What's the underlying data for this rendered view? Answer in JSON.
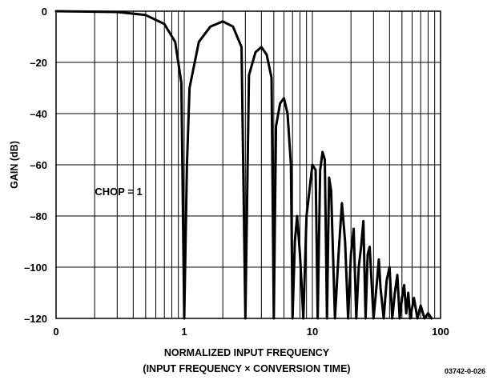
{
  "chart_data": {
    "type": "line",
    "xlabel_line1": "NORMALIZED INPUT FREQUENCY",
    "xlabel_line2": "(INPUT FREQUENCY × CONVERSION TIME)",
    "ylabel": "GAIN (dB)",
    "xscale": "log",
    "xlim": [
      0.1,
      100
    ],
    "ylim": [
      -120,
      0
    ],
    "grid": true,
    "x_ticks": [
      {
        "value": 0.1,
        "label": "0"
      },
      {
        "value": 1,
        "label": "1"
      },
      {
        "value": 10,
        "label": "10"
      },
      {
        "value": 100,
        "label": "100"
      }
    ],
    "y_ticks": [
      {
        "value": 0,
        "label": "0"
      },
      {
        "value": -20,
        "label": "–20"
      },
      {
        "value": -40,
        "label": "–40"
      },
      {
        "value": -60,
        "label": "–60"
      },
      {
        "value": -80,
        "label": "–80"
      },
      {
        "value": -100,
        "label": "–100"
      },
      {
        "value": -120,
        "label": "–120"
      }
    ],
    "annotation": "CHOP = 1",
    "figure_id": "03742-0-026",
    "series": [
      {
        "x": [
          0.1,
          0.3,
          0.5,
          0.7,
          0.85,
          0.95,
          1.0,
          1.05,
          1.1,
          1.3,
          1.6,
          2.0,
          2.4,
          2.8,
          3.0,
          3.2,
          3.6,
          4.0,
          4.4,
          4.8,
          5.0,
          5.2,
          5.6,
          6.0,
          6.4,
          6.8,
          7.0,
          7.3,
          7.6,
          8.0,
          8.5,
          9.0,
          10.0,
          10.6,
          11.0,
          11.5,
          12.0,
          12.5,
          13.0,
          13.5,
          14.0,
          15.0,
          16.0,
          17.0,
          18.0,
          19.0,
          20.0,
          21.0,
          22.0,
          23.0,
          24.0,
          25.0,
          26.0,
          27.0,
          28.0,
          30.0,
          32.0,
          33.0,
          34.0,
          36.0,
          38.0,
          40.0,
          42.0,
          44.0,
          46.0,
          48.0,
          50.0,
          52.0,
          54.0,
          56.0,
          58.0,
          62.0,
          66.0,
          70.0,
          75.0,
          80.0,
          85.0
        ],
        "y": [
          0,
          -0.3,
          -1.5,
          -5,
          -12,
          -28,
          -120,
          -60,
          -30,
          -12,
          -6,
          -4,
          -6,
          -14,
          -120,
          -25,
          -16,
          -14,
          -17,
          -26,
          -120,
          -45,
          -36,
          -34,
          -40,
          -60,
          -120,
          -90,
          -80,
          -95,
          -120,
          -80,
          -60,
          -62,
          -120,
          -62,
          -55,
          -58,
          -120,
          -65,
          -70,
          -120,
          -95,
          -75,
          -90,
          -120,
          -95,
          -85,
          -120,
          -100,
          -92,
          -82,
          -120,
          -95,
          -92,
          -120,
          -105,
          -97,
          -108,
          -120,
          -105,
          -100,
          -120,
          -110,
          -103,
          -120,
          -112,
          -107,
          -118,
          -110,
          -120,
          -112,
          -120,
          -115,
          -120,
          -118,
          -120
        ]
      }
    ]
  }
}
